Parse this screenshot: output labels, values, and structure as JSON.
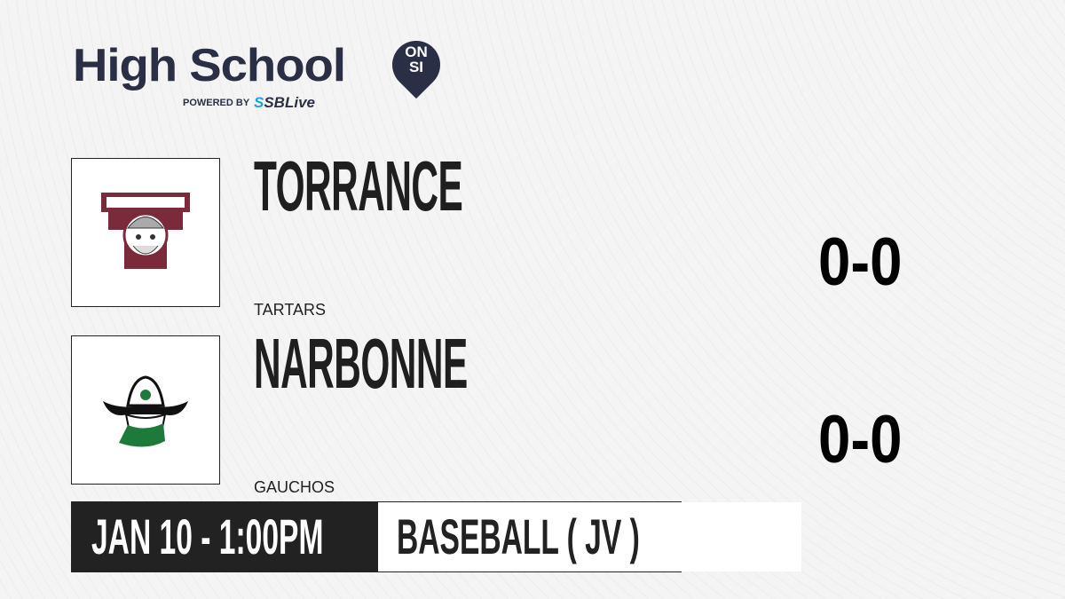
{
  "brand": {
    "title": "High School",
    "badge_top": "ON",
    "badge_bottom": "SI",
    "powered_by": "POWERED BY",
    "partner": "SBLive"
  },
  "teams": [
    {
      "name": "TORRANCE",
      "mascot": "TARTARS",
      "score": "0-0",
      "logo": "tartars-viking-logo",
      "color": "#7a2a3a"
    },
    {
      "name": "NARBONNE",
      "mascot": "GAUCHOS",
      "score": "0-0",
      "logo": "gauchos-cowboy-logo",
      "color": "#1e7a3a"
    }
  ],
  "game": {
    "datetime": "JAN 10 - 1:00PM",
    "sport": "BASEBALL ( JV )"
  }
}
